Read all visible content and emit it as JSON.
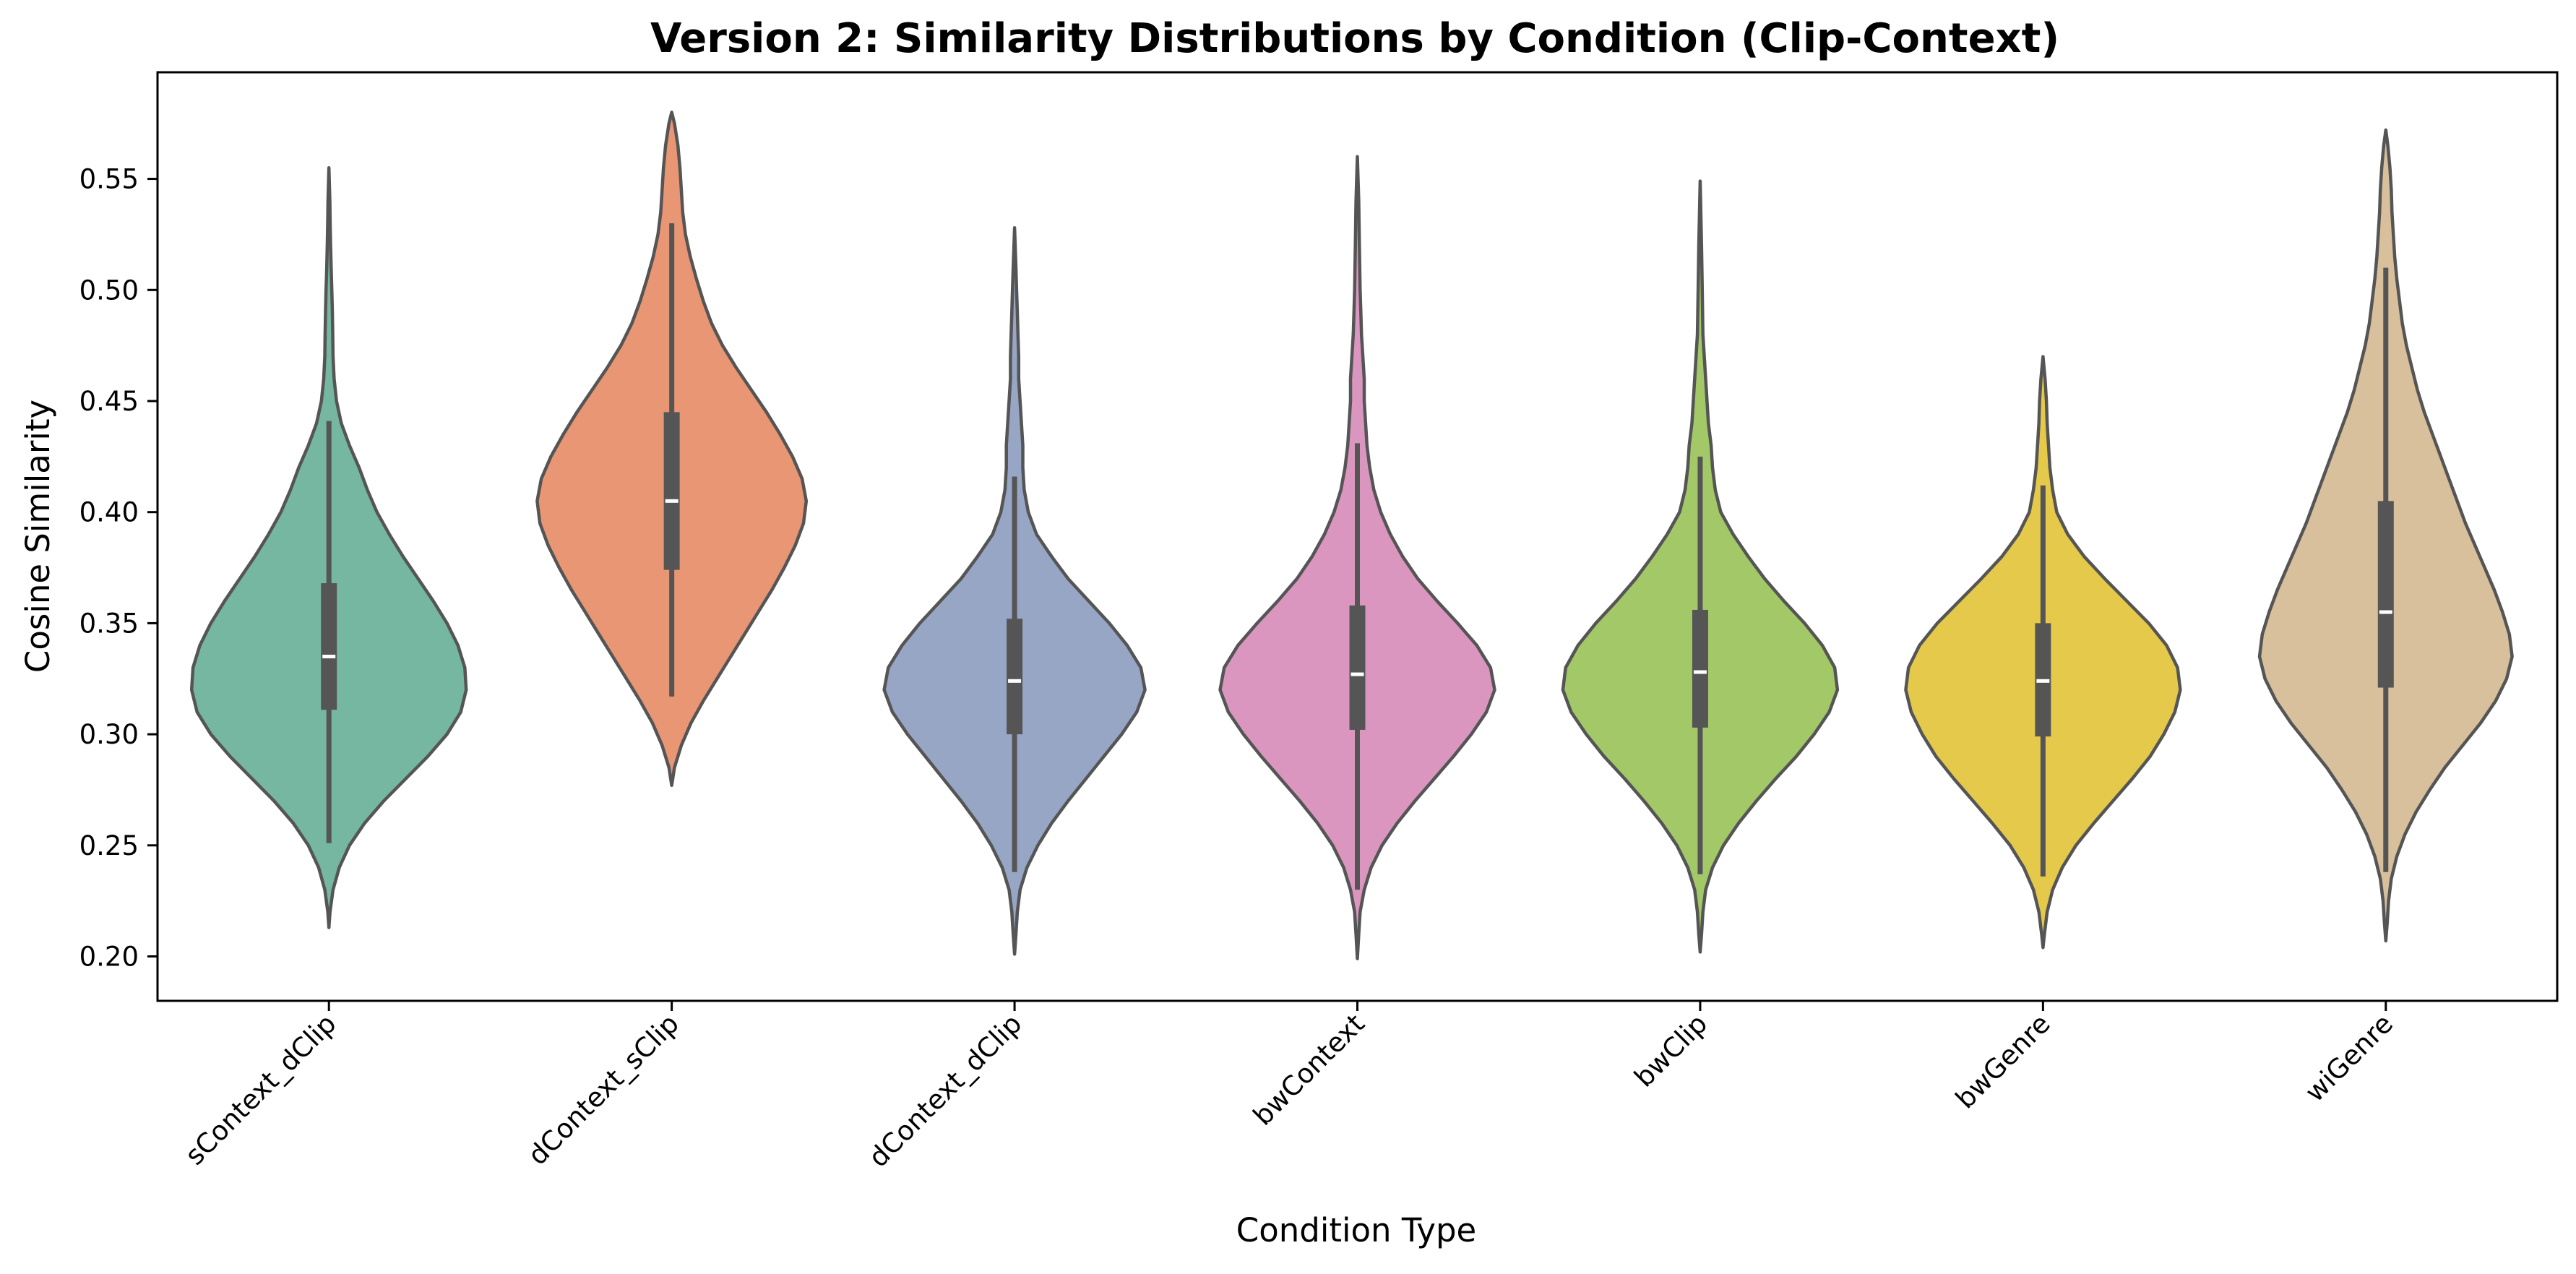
{
  "chart_data": {
    "type": "violin",
    "title": "Version 2: Similarity Distributions by Condition (Clip-Context)",
    "xlabel": "Condition Type",
    "ylabel": "Cosine Similarity",
    "ylim": [
      0.18,
      0.598
    ],
    "yticks": [
      0.2,
      0.25,
      0.3,
      0.35,
      0.4,
      0.45,
      0.5,
      0.55
    ],
    "ytick_labels": [
      "0.20",
      "0.25",
      "0.30",
      "0.35",
      "0.40",
      "0.45",
      "0.50",
      "0.55"
    ],
    "grid": false,
    "legend": "none",
    "categories": [
      "sContext_dClip",
      "dContext_sClip",
      "dContext_dClip",
      "bwContext",
      "bwClip",
      "bwGenre",
      "wiGenre"
    ],
    "series": [
      {
        "category": "sContext_dClip",
        "color": "#76b7a1",
        "min": 0.213,
        "max": 0.555,
        "whisker_low": 0.251,
        "whisker_high": 0.441,
        "q1": 0.311,
        "median": 0.335,
        "q3": 0.368,
        "density": [
          [
            0.213,
            0.0
          ],
          [
            0.22,
            0.008
          ],
          [
            0.23,
            0.03
          ],
          [
            0.24,
            0.075
          ],
          [
            0.25,
            0.15
          ],
          [
            0.26,
            0.26
          ],
          [
            0.27,
            0.4
          ],
          [
            0.28,
            0.56
          ],
          [
            0.29,
            0.72
          ],
          [
            0.3,
            0.86
          ],
          [
            0.31,
            0.96
          ],
          [
            0.32,
            1.0
          ],
          [
            0.33,
            0.99
          ],
          [
            0.34,
            0.94
          ],
          [
            0.35,
            0.86
          ],
          [
            0.36,
            0.76
          ],
          [
            0.37,
            0.65
          ],
          [
            0.38,
            0.54
          ],
          [
            0.39,
            0.44
          ],
          [
            0.4,
            0.35
          ],
          [
            0.41,
            0.28
          ],
          [
            0.42,
            0.22
          ],
          [
            0.43,
            0.15
          ],
          [
            0.44,
            0.09
          ],
          [
            0.45,
            0.055
          ],
          [
            0.46,
            0.038
          ],
          [
            0.47,
            0.03
          ],
          [
            0.48,
            0.028
          ],
          [
            0.49,
            0.025
          ],
          [
            0.5,
            0.021
          ],
          [
            0.51,
            0.016
          ],
          [
            0.52,
            0.012
          ],
          [
            0.53,
            0.009
          ],
          [
            0.54,
            0.007
          ],
          [
            0.555,
            0.0
          ]
        ]
      },
      {
        "category": "dContext_sClip",
        "color": "#e99674",
        "min": 0.277,
        "max": 0.58,
        "whisker_low": 0.317,
        "whisker_high": 0.53,
        "q1": 0.374,
        "median": 0.405,
        "q3": 0.445,
        "density": [
          [
            0.277,
            0.0
          ],
          [
            0.285,
            0.02
          ],
          [
            0.295,
            0.07
          ],
          [
            0.305,
            0.14
          ],
          [
            0.315,
            0.23
          ],
          [
            0.325,
            0.33
          ],
          [
            0.335,
            0.43
          ],
          [
            0.345,
            0.53
          ],
          [
            0.355,
            0.63
          ],
          [
            0.365,
            0.73
          ],
          [
            0.375,
            0.82
          ],
          [
            0.385,
            0.9
          ],
          [
            0.395,
            0.96
          ],
          [
            0.405,
            0.98
          ],
          [
            0.415,
            0.95
          ],
          [
            0.425,
            0.88
          ],
          [
            0.435,
            0.79
          ],
          [
            0.445,
            0.69
          ],
          [
            0.455,
            0.58
          ],
          [
            0.465,
            0.47
          ],
          [
            0.475,
            0.37
          ],
          [
            0.485,
            0.29
          ],
          [
            0.495,
            0.23
          ],
          [
            0.505,
            0.18
          ],
          [
            0.515,
            0.135
          ],
          [
            0.525,
            0.1
          ],
          [
            0.535,
            0.08
          ],
          [
            0.545,
            0.07
          ],
          [
            0.555,
            0.06
          ],
          [
            0.565,
            0.045
          ],
          [
            0.575,
            0.02
          ],
          [
            0.58,
            0.0
          ]
        ]
      },
      {
        "category": "dContext_dClip",
        "color": "#96a6c4",
        "min": 0.201,
        "max": 0.528,
        "whisker_low": 0.238,
        "whisker_high": 0.416,
        "q1": 0.3,
        "median": 0.324,
        "q3": 0.352,
        "density": [
          [
            0.201,
            0.0
          ],
          [
            0.21,
            0.01
          ],
          [
            0.22,
            0.02
          ],
          [
            0.23,
            0.04
          ],
          [
            0.24,
            0.09
          ],
          [
            0.25,
            0.17
          ],
          [
            0.26,
            0.27
          ],
          [
            0.27,
            0.39
          ],
          [
            0.28,
            0.52
          ],
          [
            0.29,
            0.65
          ],
          [
            0.3,
            0.78
          ],
          [
            0.31,
            0.89
          ],
          [
            0.32,
            0.95
          ],
          [
            0.33,
            0.92
          ],
          [
            0.34,
            0.82
          ],
          [
            0.35,
            0.69
          ],
          [
            0.36,
            0.54
          ],
          [
            0.37,
            0.39
          ],
          [
            0.38,
            0.27
          ],
          [
            0.39,
            0.16
          ],
          [
            0.4,
            0.1
          ],
          [
            0.41,
            0.07
          ],
          [
            0.42,
            0.06
          ],
          [
            0.43,
            0.06
          ],
          [
            0.44,
            0.05
          ],
          [
            0.45,
            0.04
          ],
          [
            0.46,
            0.03
          ],
          [
            0.47,
            0.03
          ],
          [
            0.48,
            0.025
          ],
          [
            0.49,
            0.02
          ],
          [
            0.5,
            0.015
          ],
          [
            0.51,
            0.01
          ],
          [
            0.528,
            0.0
          ]
        ]
      },
      {
        "category": "bwContext",
        "color": "#db96c0",
        "min": 0.199,
        "max": 0.56,
        "whisker_low": 0.23,
        "whisker_high": 0.431,
        "q1": 0.302,
        "median": 0.327,
        "q3": 0.358,
        "density": [
          [
            0.199,
            0.0
          ],
          [
            0.21,
            0.01
          ],
          [
            0.22,
            0.02
          ],
          [
            0.23,
            0.05
          ],
          [
            0.24,
            0.1
          ],
          [
            0.25,
            0.18
          ],
          [
            0.26,
            0.29
          ],
          [
            0.27,
            0.42
          ],
          [
            0.28,
            0.56
          ],
          [
            0.29,
            0.7
          ],
          [
            0.3,
            0.83
          ],
          [
            0.31,
            0.94
          ],
          [
            0.32,
            1.0
          ],
          [
            0.33,
            0.97
          ],
          [
            0.34,
            0.87
          ],
          [
            0.35,
            0.73
          ],
          [
            0.36,
            0.58
          ],
          [
            0.37,
            0.44
          ],
          [
            0.38,
            0.33
          ],
          [
            0.39,
            0.24
          ],
          [
            0.4,
            0.17
          ],
          [
            0.41,
            0.12
          ],
          [
            0.42,
            0.09
          ],
          [
            0.43,
            0.07
          ],
          [
            0.44,
            0.06
          ],
          [
            0.45,
            0.05
          ],
          [
            0.46,
            0.05
          ],
          [
            0.47,
            0.04
          ],
          [
            0.48,
            0.03
          ],
          [
            0.49,
            0.025
          ],
          [
            0.5,
            0.02
          ],
          [
            0.52,
            0.015
          ],
          [
            0.54,
            0.01
          ],
          [
            0.56,
            0.0
          ]
        ]
      },
      {
        "category": "bwClip",
        "color": "#a2c867",
        "min": 0.202,
        "max": 0.549,
        "whisker_low": 0.237,
        "whisker_high": 0.425,
        "q1": 0.303,
        "median": 0.328,
        "q3": 0.356,
        "density": [
          [
            0.202,
            0.0
          ],
          [
            0.21,
            0.01
          ],
          [
            0.22,
            0.02
          ],
          [
            0.23,
            0.04
          ],
          [
            0.24,
            0.09
          ],
          [
            0.25,
            0.17
          ],
          [
            0.26,
            0.28
          ],
          [
            0.27,
            0.41
          ],
          [
            0.28,
            0.55
          ],
          [
            0.29,
            0.7
          ],
          [
            0.3,
            0.83
          ],
          [
            0.31,
            0.94
          ],
          [
            0.32,
            1.0
          ],
          [
            0.33,
            0.98
          ],
          [
            0.34,
            0.89
          ],
          [
            0.35,
            0.76
          ],
          [
            0.36,
            0.61
          ],
          [
            0.37,
            0.47
          ],
          [
            0.38,
            0.35
          ],
          [
            0.39,
            0.24
          ],
          [
            0.4,
            0.15
          ],
          [
            0.41,
            0.11
          ],
          [
            0.42,
            0.09
          ],
          [
            0.43,
            0.08
          ],
          [
            0.44,
            0.06
          ],
          [
            0.45,
            0.05
          ],
          [
            0.46,
            0.04
          ],
          [
            0.47,
            0.03
          ],
          [
            0.48,
            0.02
          ],
          [
            0.5,
            0.015
          ],
          [
            0.52,
            0.01
          ],
          [
            0.549,
            0.0
          ]
        ]
      },
      {
        "category": "bwGenre",
        "color": "#e5c94b",
        "min": 0.204,
        "max": 0.47,
        "whisker_low": 0.236,
        "whisker_high": 0.412,
        "q1": 0.299,
        "median": 0.324,
        "q3": 0.35,
        "density": [
          [
            0.204,
            0.0
          ],
          [
            0.21,
            0.01
          ],
          [
            0.22,
            0.03
          ],
          [
            0.23,
            0.07
          ],
          [
            0.24,
            0.14
          ],
          [
            0.25,
            0.24
          ],
          [
            0.26,
            0.37
          ],
          [
            0.27,
            0.51
          ],
          [
            0.28,
            0.65
          ],
          [
            0.29,
            0.78
          ],
          [
            0.3,
            0.88
          ],
          [
            0.31,
            0.96
          ],
          [
            0.32,
            1.0
          ],
          [
            0.33,
            0.98
          ],
          [
            0.34,
            0.9
          ],
          [
            0.35,
            0.77
          ],
          [
            0.36,
            0.61
          ],
          [
            0.37,
            0.45
          ],
          [
            0.38,
            0.3
          ],
          [
            0.39,
            0.18
          ],
          [
            0.4,
            0.1
          ],
          [
            0.41,
            0.07
          ],
          [
            0.42,
            0.05
          ],
          [
            0.43,
            0.04
          ],
          [
            0.44,
            0.03
          ],
          [
            0.45,
            0.025
          ],
          [
            0.46,
            0.015
          ],
          [
            0.47,
            0.0
          ]
        ]
      },
      {
        "category": "wiGenre",
        "color": "#d9c09c",
        "min": 0.207,
        "max": 0.572,
        "whisker_low": 0.238,
        "whisker_high": 0.51,
        "q1": 0.321,
        "median": 0.355,
        "q3": 0.405,
        "density": [
          [
            0.207,
            0.0
          ],
          [
            0.215,
            0.01
          ],
          [
            0.225,
            0.02
          ],
          [
            0.235,
            0.04
          ],
          [
            0.245,
            0.08
          ],
          [
            0.255,
            0.14
          ],
          [
            0.265,
            0.22
          ],
          [
            0.275,
            0.32
          ],
          [
            0.285,
            0.43
          ],
          [
            0.295,
            0.56
          ],
          [
            0.305,
            0.69
          ],
          [
            0.315,
            0.8
          ],
          [
            0.325,
            0.88
          ],
          [
            0.335,
            0.92
          ],
          [
            0.345,
            0.9
          ],
          [
            0.355,
            0.85
          ],
          [
            0.365,
            0.79
          ],
          [
            0.375,
            0.72
          ],
          [
            0.385,
            0.65
          ],
          [
            0.395,
            0.58
          ],
          [
            0.405,
            0.52
          ],
          [
            0.415,
            0.46
          ],
          [
            0.425,
            0.4
          ],
          [
            0.435,
            0.34
          ],
          [
            0.445,
            0.28
          ],
          [
            0.455,
            0.23
          ],
          [
            0.465,
            0.19
          ],
          [
            0.475,
            0.15
          ],
          [
            0.485,
            0.12
          ],
          [
            0.495,
            0.1
          ],
          [
            0.505,
            0.08
          ],
          [
            0.515,
            0.065
          ],
          [
            0.525,
            0.055
          ],
          [
            0.535,
            0.045
          ],
          [
            0.545,
            0.04
          ],
          [
            0.555,
            0.03
          ],
          [
            0.565,
            0.015
          ],
          [
            0.572,
            0.0
          ]
        ]
      }
    ]
  }
}
